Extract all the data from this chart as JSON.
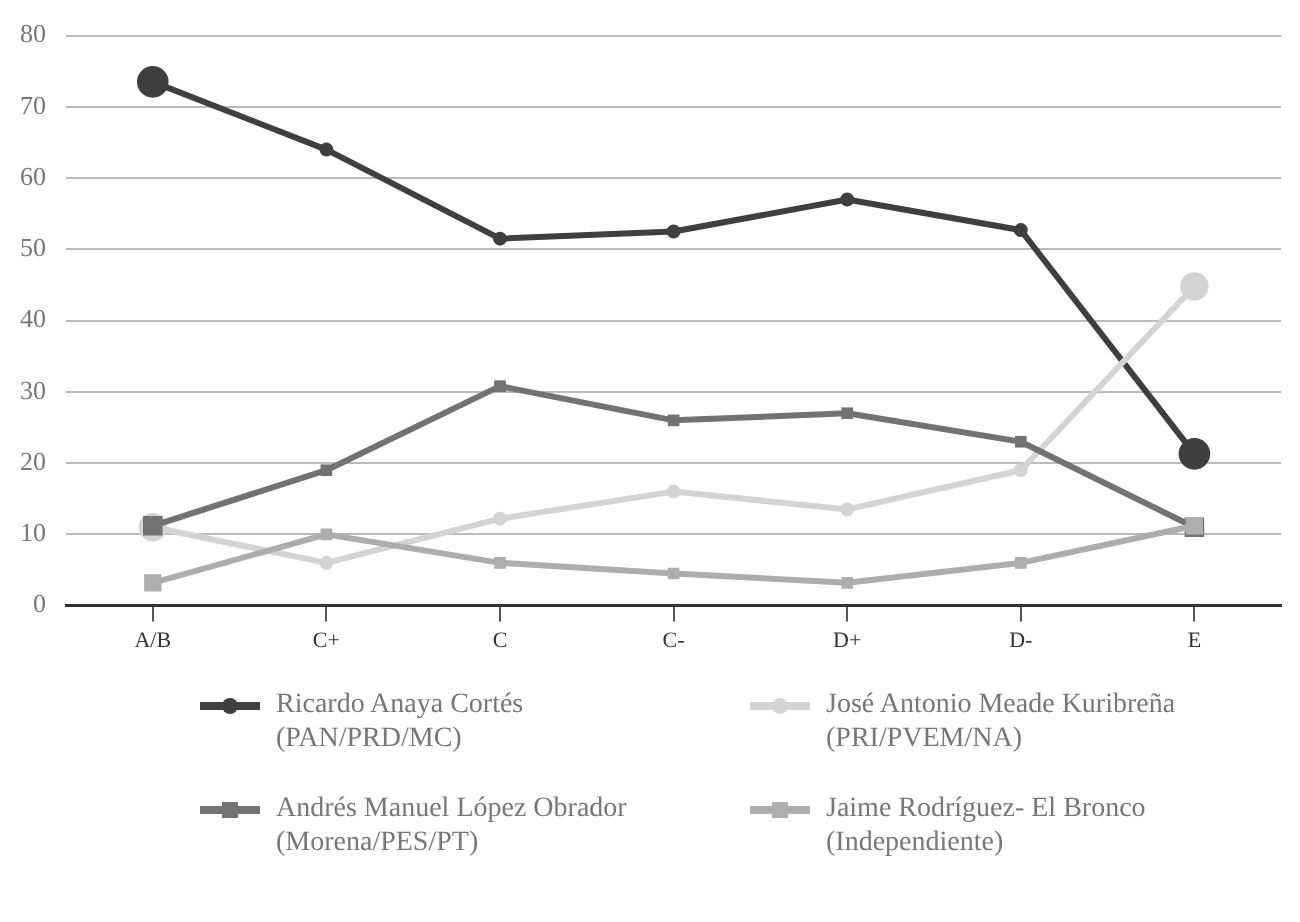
{
  "chart_data": {
    "type": "line",
    "categories": [
      "A/B",
      "C+",
      "C",
      "C-",
      "D+",
      "D-",
      "E"
    ],
    "series": [
      {
        "name": "Ricardo Anaya Cortés\n(PAN/PRD/MC)",
        "color": "#3f3f3f",
        "marker": "circle",
        "values": [
          73.5,
          64,
          51.5,
          52.5,
          57,
          52.7,
          21.3
        ]
      },
      {
        "name": "José Antonio Meade Kuribreña\n(PRI/PVEM/NA)",
        "color": "#d4d4d4",
        "marker": "circle",
        "values": [
          11,
          6,
          12.2,
          16,
          13.5,
          19,
          44.8
        ]
      },
      {
        "name": "Andrés Manuel López Obrador\n(Morena/PES/PT)",
        "color": "#727272",
        "marker": "square",
        "values": [
          11.2,
          19,
          30.8,
          26,
          27,
          23,
          11
        ]
      },
      {
        "name": "Jaime Rodríguez- El Bronco\n(Independiente)",
        "color": "#adadad",
        "marker": "square",
        "values": [
          3.2,
          10,
          6,
          4.5,
          3.2,
          6,
          11.2
        ]
      }
    ],
    "ylim": [
      0,
      80
    ],
    "yticks": [
      0,
      10,
      20,
      30,
      40,
      50,
      60,
      70,
      80
    ],
    "grid": "y",
    "legend": "bottom"
  }
}
